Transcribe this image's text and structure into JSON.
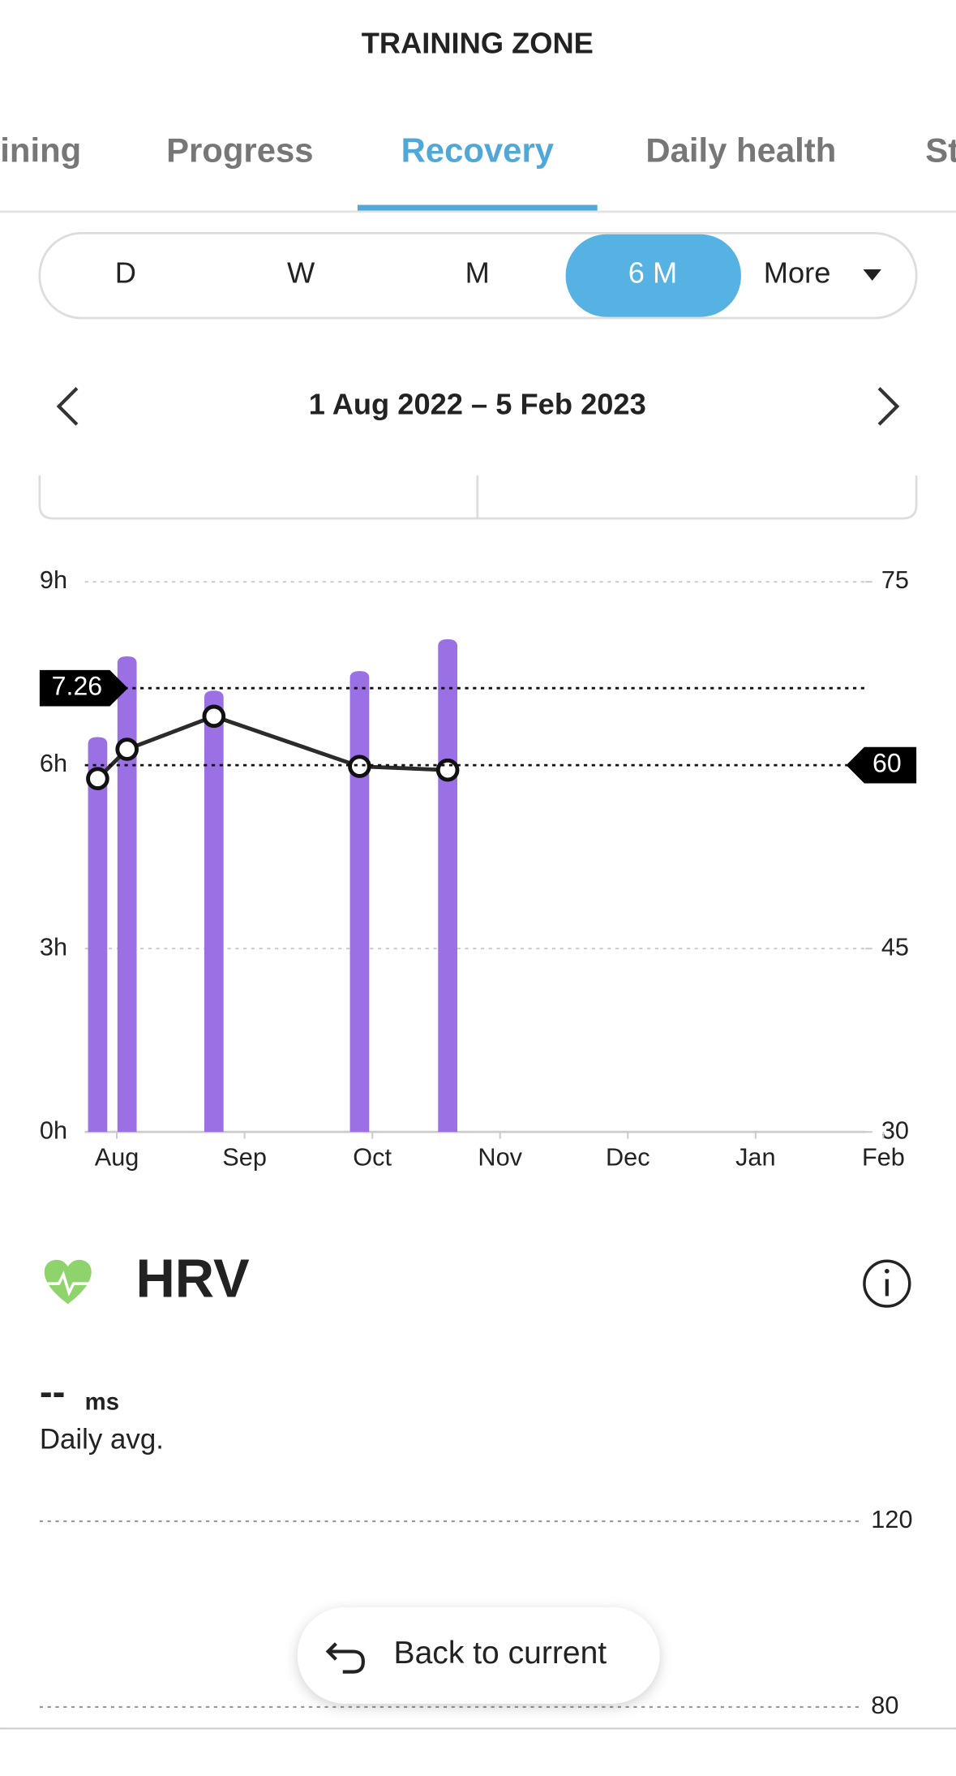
{
  "header": {
    "title": "TRAINING ZONE"
  },
  "tabs": [
    "ining",
    "Progress",
    "Recovery",
    "Daily health",
    "St"
  ],
  "periods": [
    "D",
    "W",
    "M",
    "6 M",
    "More"
  ],
  "date_range": "1 Aug 2022 – 5 Feb 2023",
  "chart_data": [
    {
      "type": "bar",
      "xlim": [
        -0.25,
        5.86
      ],
      "xticks": [
        {
          "value": 0,
          "label": "Aug"
        },
        {
          "value": 1,
          "label": "Sep"
        },
        {
          "value": 2,
          "label": "Oct"
        },
        {
          "value": 3,
          "label": "Nov"
        },
        {
          "value": 4,
          "label": "Dec"
        },
        {
          "value": 5,
          "label": "Jan"
        },
        {
          "value": 6,
          "label": "Feb"
        }
      ],
      "ylim": [
        0,
        9
      ],
      "yticks": [
        {
          "value": 0,
          "label": "0h"
        },
        {
          "value": 3,
          "label": "3h"
        },
        {
          "value": 6,
          "label": "6h"
        },
        {
          "value": 9,
          "label": "9h"
        }
      ],
      "y2lim": [
        30,
        75
      ],
      "y2ticks": [
        30,
        45,
        60,
        75
      ],
      "grid": true,
      "reference_lines": [
        {
          "value": 7.26,
          "axis": "y"
        },
        {
          "value": 60,
          "axis": "y2"
        }
      ],
      "series": [
        {
          "color": "#9b70e4",
          "x": [
            -0.15,
            0.08,
            0.76,
            1.9,
            2.59
          ],
          "values": [
            6.46,
            7.78,
            7.22,
            7.54,
            8.06
          ]
        },
        {
          "color": "#2b2b2b",
          "type": "line",
          "axis": "y2",
          "x": [
            -0.15,
            0.08,
            0.76,
            1.9,
            2.59
          ],
          "values": [
            58.9,
            61.3,
            64.0,
            59.9,
            59.6
          ]
        }
      ]
    },
    {
      "type": "line",
      "ylim": [
        80,
        120
      ],
      "yticks": [
        80,
        120
      ],
      "grid": true
    }
  ],
  "hrv": {
    "title": "HRV",
    "value": "--",
    "unit": "ms",
    "caption": "Daily avg."
  },
  "button": "Back to current"
}
